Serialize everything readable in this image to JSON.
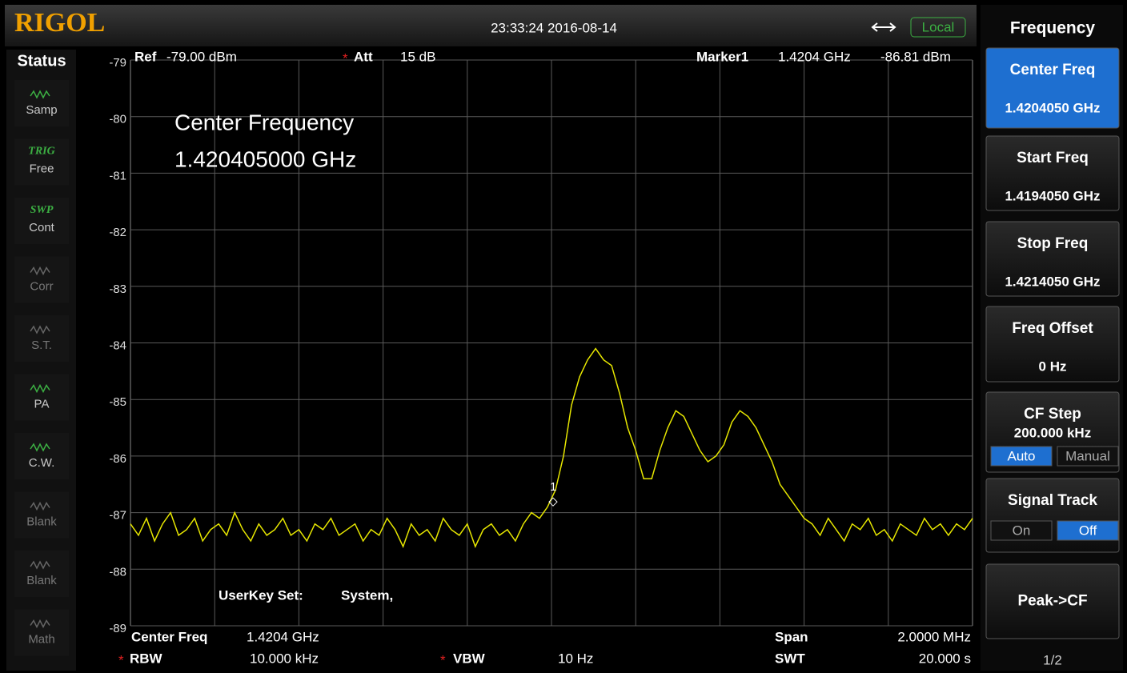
{
  "header": {
    "brand": "RIGOL",
    "datetime": "23:33:24 2016-08-14",
    "remote": "Local"
  },
  "status": {
    "title": "Status",
    "items": [
      {
        "label": "Samp"
      },
      {
        "tag": "TRIG",
        "label": "Free"
      },
      {
        "tag": "SWP",
        "label": "Cont"
      },
      {
        "label": "Corr"
      },
      {
        "label": "S.T."
      },
      {
        "label": "PA"
      },
      {
        "label": "C.W."
      },
      {
        "label": "Blank"
      },
      {
        "label": "Blank"
      },
      {
        "label": "Math"
      }
    ]
  },
  "chart_data": {
    "type": "line",
    "color": "#e6e600",
    "annotations": [
      "Center Frequency",
      "1.420405000 GHz",
      "UserKey Set:",
      "System,"
    ],
    "marker_label": "1",
    "values": [
      -87.2,
      -87.4,
      -87.1,
      -87.5,
      -87.2,
      -87.0,
      -87.4,
      -87.3,
      -87.1,
      -87.5,
      -87.3,
      -87.2,
      -87.4,
      -87.0,
      -87.3,
      -87.5,
      -87.2,
      -87.4,
      -87.3,
      -87.1,
      -87.4,
      -87.3,
      -87.5,
      -87.2,
      -87.3,
      -87.1,
      -87.4,
      -87.3,
      -87.2,
      -87.5,
      -87.3,
      -87.4,
      -87.1,
      -87.3,
      -87.6,
      -87.2,
      -87.4,
      -87.3,
      -87.5,
      -87.1,
      -87.3,
      -87.4,
      -87.2,
      -87.6,
      -87.3,
      -87.2,
      -87.4,
      -87.3,
      -87.5,
      -87.2,
      -87.0,
      -87.1,
      -86.9,
      -86.6,
      -86.0,
      -85.1,
      -84.6,
      -84.3,
      -84.1,
      -84.3,
      -84.4,
      -84.9,
      -85.5,
      -85.9,
      -86.4,
      -86.4,
      -85.9,
      -85.5,
      -85.2,
      -85.3,
      -85.6,
      -85.9,
      -86.1,
      -86.0,
      -85.8,
      -85.4,
      -85.2,
      -85.3,
      -85.5,
      -85.8,
      -86.1,
      -86.5,
      -86.7,
      -86.9,
      -87.1,
      -87.2,
      -87.4,
      -87.1,
      -87.3,
      -87.5,
      -87.2,
      -87.3,
      -87.1,
      -87.4,
      -87.3,
      -87.5,
      -87.2,
      -87.3,
      -87.4,
      -87.1,
      -87.3,
      -87.2,
      -87.4,
      -87.2,
      -87.3,
      -87.1
    ],
    "ylim": [
      -89,
      -79
    ],
    "yticks": [
      -79,
      -80,
      -81,
      -82,
      -83,
      -84,
      -85,
      -86,
      -87,
      -88,
      -89
    ],
    "grid": true
  },
  "info": {
    "ref_label": "Ref",
    "ref": "-79.00 dBm",
    "att_label": "Att",
    "att": "15 dB",
    "marker_name": "Marker1",
    "marker_freq": "1.4204 GHz",
    "marker_level": "-86.81 dBm",
    "center_label": "Center Freq",
    "center": "1.4204 GHz",
    "span_label": "Span",
    "span": "2.0000 MHz",
    "rbw_label": "RBW",
    "rbw": "10.000 kHz",
    "vbw_label": "VBW",
    "vbw": "10 Hz",
    "swt_label": "SWT",
    "swt": "20.000 s",
    "manual_flag": "*"
  },
  "menu": {
    "title": "Frequency",
    "keys": [
      {
        "label": "Center Freq",
        "value": "1.4204050 GHz"
      },
      {
        "label": "Start Freq",
        "value": "1.4194050 GHz"
      },
      {
        "label": "Stop Freq",
        "value": "1.4214050 GHz"
      },
      {
        "label": "Freq Offset",
        "value": "0 Hz"
      },
      {
        "label": "CF Step",
        "value": "200.000 kHz",
        "options": [
          "Auto",
          "Manual"
        ]
      },
      {
        "label": "Signal Track",
        "options": [
          "On",
          "Off"
        ]
      },
      {
        "label": "Peak->CF"
      }
    ],
    "page": "1/2"
  }
}
